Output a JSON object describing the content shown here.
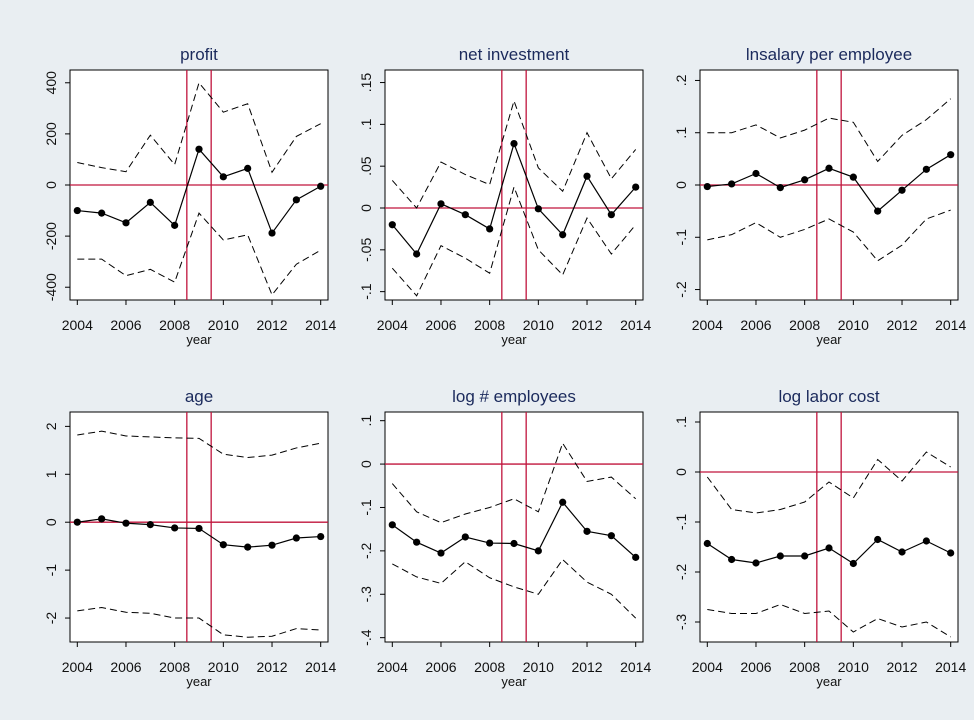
{
  "chart_data": [
    {
      "type": "line",
      "title": "profit",
      "xlabel": "year",
      "x": [
        2004,
        2005,
        2006,
        2007,
        2008,
        2009,
        2010,
        2011,
        2012,
        2013,
        2014
      ],
      "xlim": [
        2003.7,
        2014.3
      ],
      "xticks": [
        2004,
        2006,
        2008,
        2010,
        2012,
        2014
      ],
      "ylim": [
        -450,
        450
      ],
      "yticks": [
        -400,
        -200,
        0,
        200,
        400
      ],
      "vlines": [
        2008.5,
        2009.5
      ],
      "hline": 0,
      "ref_color": "#c0143c",
      "series": [
        {
          "color": "#000000",
          "dashed": false,
          "markers": true,
          "values": [
            -100,
            -110,
            -148,
            -68,
            -158,
            140,
            32,
            65,
            -188,
            -58,
            -5
          ]
        },
        {
          "color": "#000000",
          "dashed": true,
          "markers": false,
          "values": [
            88,
            68,
            52,
            195,
            80,
            400,
            285,
            318,
            50,
            190,
            240
          ]
        },
        {
          "color": "#000000",
          "dashed": true,
          "markers": false,
          "values": [
            -290,
            -290,
            -355,
            -330,
            -380,
            -110,
            -215,
            -195,
            -430,
            -310,
            -255
          ]
        }
      ]
    },
    {
      "type": "line",
      "title": "net investment",
      "xlabel": "year",
      "x": [
        2004,
        2005,
        2006,
        2007,
        2008,
        2009,
        2010,
        2011,
        2012,
        2013,
        2014
      ],
      "xlim": [
        2003.7,
        2014.3
      ],
      "xticks": [
        2004,
        2006,
        2008,
        2010,
        2012,
        2014
      ],
      "ylim": [
        -0.11,
        0.165
      ],
      "yticks": [
        {
          "value": -0.1,
          "label": "-.1"
        },
        {
          "value": -0.05,
          "label": "-.05"
        },
        0,
        {
          "value": 0.05,
          "label": ".05"
        },
        {
          "value": 0.1,
          "label": ".1"
        },
        {
          "value": 0.15,
          "label": ".15"
        }
      ],
      "vlines": [
        2008.5,
        2009.5
      ],
      "hline": 0,
      "ref_color": "#c0143c",
      "series": [
        {
          "color": "#000000",
          "dashed": false,
          "markers": true,
          "values": [
            -0.02,
            -0.055,
            0.005,
            -0.008,
            -0.025,
            0.077,
            -0.001,
            -0.032,
            0.038,
            -0.008,
            0.025
          ]
        },
        {
          "color": "#000000",
          "dashed": true,
          "markers": false,
          "values": [
            0.033,
            0.0,
            0.055,
            0.04,
            0.028,
            0.128,
            0.048,
            0.02,
            0.09,
            0.035,
            0.07
          ]
        },
        {
          "color": "#000000",
          "dashed": true,
          "markers": false,
          "values": [
            -0.072,
            -0.105,
            -0.045,
            -0.06,
            -0.078,
            0.025,
            -0.05,
            -0.08,
            -0.012,
            -0.055,
            -0.02
          ]
        }
      ]
    },
    {
      "type": "line",
      "title": "lnsalary per employee",
      "xlabel": "year",
      "x": [
        2004,
        2005,
        2006,
        2007,
        2008,
        2009,
        2010,
        2011,
        2012,
        2013,
        2014
      ],
      "xlim": [
        2003.7,
        2014.3
      ],
      "xticks": [
        2004,
        2006,
        2008,
        2010,
        2012,
        2014
      ],
      "ylim": [
        -0.22,
        0.22
      ],
      "yticks": [
        {
          "value": -0.2,
          "label": "-.2"
        },
        {
          "value": -0.1,
          "label": "-.1"
        },
        0,
        {
          "value": 0.1,
          "label": ".1"
        },
        {
          "value": 0.2,
          "label": ".2"
        }
      ],
      "vlines": [
        2008.5,
        2009.5
      ],
      "hline": 0,
      "ref_color": "#c0143c",
      "series": [
        {
          "color": "#000000",
          "dashed": false,
          "markers": true,
          "values": [
            -0.003,
            0.002,
            0.022,
            -0.005,
            0.01,
            0.032,
            0.015,
            -0.05,
            -0.01,
            0.03,
            0.058
          ]
        },
        {
          "color": "#000000",
          "dashed": true,
          "markers": false,
          "values": [
            0.1,
            0.1,
            0.115,
            0.09,
            0.105,
            0.128,
            0.12,
            0.045,
            0.095,
            0.125,
            0.165
          ]
        },
        {
          "color": "#000000",
          "dashed": true,
          "markers": false,
          "values": [
            -0.105,
            -0.095,
            -0.072,
            -0.1,
            -0.085,
            -0.065,
            -0.09,
            -0.145,
            -0.115,
            -0.065,
            -0.048
          ]
        }
      ]
    },
    {
      "type": "line",
      "title": "age",
      "xlabel": "year",
      "x": [
        2004,
        2005,
        2006,
        2007,
        2008,
        2009,
        2010,
        2011,
        2012,
        2013,
        2014
      ],
      "xlim": [
        2003.7,
        2014.3
      ],
      "xticks": [
        2004,
        2006,
        2008,
        2010,
        2012,
        2014
      ],
      "ylim": [
        -2.5,
        2.3
      ],
      "yticks": [
        -2,
        -1,
        0,
        1,
        2
      ],
      "vlines": [
        2008.5,
        2009.5
      ],
      "hline": 0,
      "ref_color": "#c0143c",
      "series": [
        {
          "color": "#000000",
          "dashed": false,
          "markers": true,
          "values": [
            0,
            0.07,
            -0.02,
            -0.05,
            -0.12,
            -0.13,
            -0.47,
            -0.52,
            -0.48,
            -0.33,
            -0.3
          ]
        },
        {
          "color": "#000000",
          "dashed": true,
          "markers": false,
          "values": [
            1.82,
            1.9,
            1.8,
            1.78,
            1.76,
            1.75,
            1.42,
            1.35,
            1.4,
            1.55,
            1.65
          ]
        },
        {
          "color": "#000000",
          "dashed": true,
          "markers": false,
          "values": [
            -1.85,
            -1.78,
            -1.88,
            -1.9,
            -2.0,
            -2.0,
            -2.35,
            -2.4,
            -2.38,
            -2.22,
            -2.25
          ]
        }
      ]
    },
    {
      "type": "line",
      "title": "log # employees",
      "xlabel": "year",
      "x": [
        2004,
        2005,
        2006,
        2007,
        2008,
        2009,
        2010,
        2011,
        2012,
        2013,
        2014
      ],
      "xlim": [
        2003.7,
        2014.3
      ],
      "xticks": [
        2004,
        2006,
        2008,
        2010,
        2012,
        2014
      ],
      "ylim": [
        -0.41,
        0.12
      ],
      "yticks": [
        {
          "value": -0.4,
          "label": "-.4"
        },
        {
          "value": -0.3,
          "label": "-.3"
        },
        {
          "value": -0.2,
          "label": "-.2"
        },
        {
          "value": -0.1,
          "label": "-.1"
        },
        0,
        {
          "value": 0.1,
          "label": ".1"
        }
      ],
      "vlines": [
        2008.5,
        2009.5
      ],
      "hline": 0,
      "ref_color": "#c0143c",
      "series": [
        {
          "color": "#000000",
          "dashed": false,
          "markers": true,
          "values": [
            -0.14,
            -0.18,
            -0.205,
            -0.168,
            -0.182,
            -0.183,
            -0.2,
            -0.088,
            -0.155,
            -0.165,
            -0.215
          ]
        },
        {
          "color": "#000000",
          "dashed": true,
          "markers": false,
          "values": [
            -0.045,
            -0.11,
            -0.135,
            -0.115,
            -0.1,
            -0.08,
            -0.11,
            0.048,
            -0.04,
            -0.03,
            -0.08
          ]
        },
        {
          "color": "#000000",
          "dashed": true,
          "markers": false,
          "values": [
            -0.23,
            -0.26,
            -0.275,
            -0.225,
            -0.262,
            -0.283,
            -0.3,
            -0.22,
            -0.272,
            -0.3,
            -0.355
          ]
        }
      ]
    },
    {
      "type": "line",
      "title": "log labor cost",
      "xlabel": "year",
      "x": [
        2004,
        2005,
        2006,
        2007,
        2008,
        2009,
        2010,
        2011,
        2012,
        2013,
        2014
      ],
      "xlim": [
        2003.7,
        2014.3
      ],
      "xticks": [
        2004,
        2006,
        2008,
        2010,
        2012,
        2014
      ],
      "ylim": [
        -0.34,
        0.12
      ],
      "yticks": [
        {
          "value": -0.3,
          "label": "-.3"
        },
        {
          "value": -0.2,
          "label": "-.2"
        },
        {
          "value": -0.1,
          "label": "-.1"
        },
        0,
        {
          "value": 0.1,
          "label": ".1"
        }
      ],
      "vlines": [
        2008.5,
        2009.5
      ],
      "hline": 0,
      "ref_color": "#c0143c",
      "series": [
        {
          "color": "#000000",
          "dashed": false,
          "markers": true,
          "values": [
            -0.143,
            -0.175,
            -0.182,
            -0.168,
            -0.168,
            -0.152,
            -0.183,
            -0.135,
            -0.16,
            -0.138,
            -0.162
          ]
        },
        {
          "color": "#000000",
          "dashed": true,
          "markers": false,
          "values": [
            -0.01,
            -0.075,
            -0.082,
            -0.075,
            -0.06,
            -0.02,
            -0.052,
            0.025,
            -0.018,
            0.04,
            0.01
          ]
        },
        {
          "color": "#000000",
          "dashed": true,
          "markers": false,
          "values": [
            -0.275,
            -0.283,
            -0.283,
            -0.265,
            -0.283,
            -0.278,
            -0.32,
            -0.293,
            -0.31,
            -0.3,
            -0.33
          ]
        }
      ]
    }
  ]
}
